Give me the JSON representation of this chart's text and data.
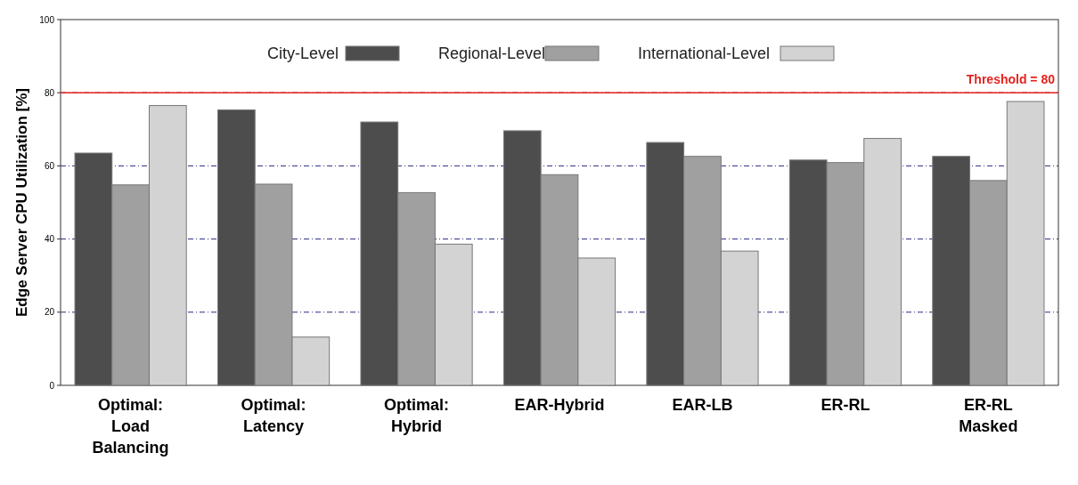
{
  "chart_data": {
    "type": "bar",
    "ylabel": "Edge Server CPU Utilization [%]",
    "categories": [
      "Optimal: Load Balancing",
      "Optimal: Latency",
      "Optimal: Hybrid",
      "EAR-Hybrid",
      "EAR-LB",
      "ER-RL",
      "ER-RL Masked"
    ],
    "series": [
      {
        "name": "City-Level",
        "color": "#4d4d4d",
        "values": [
          63.5,
          75.3,
          72,
          69.6,
          66.4,
          61.6,
          62.6
        ]
      },
      {
        "name": "Regional-Level",
        "color": "#a0a0a0",
        "values": [
          54.8,
          55,
          52.7,
          57.6,
          62.6,
          60.9,
          56
        ]
      },
      {
        "name": "International-Level",
        "color": "#d3d3d3",
        "values": [
          76.5,
          13.2,
          38.6,
          34.8,
          36.7,
          67.5,
          77.6
        ]
      }
    ],
    "ylim": [
      0,
      100
    ],
    "yticks": [
      0,
      20,
      40,
      60,
      80,
      100
    ],
    "grid": "y",
    "legend": "top",
    "ref_lines": [
      {
        "axis": "y",
        "value": 80,
        "label": "Threshold = 80",
        "color": "#e8211d"
      }
    ]
  }
}
